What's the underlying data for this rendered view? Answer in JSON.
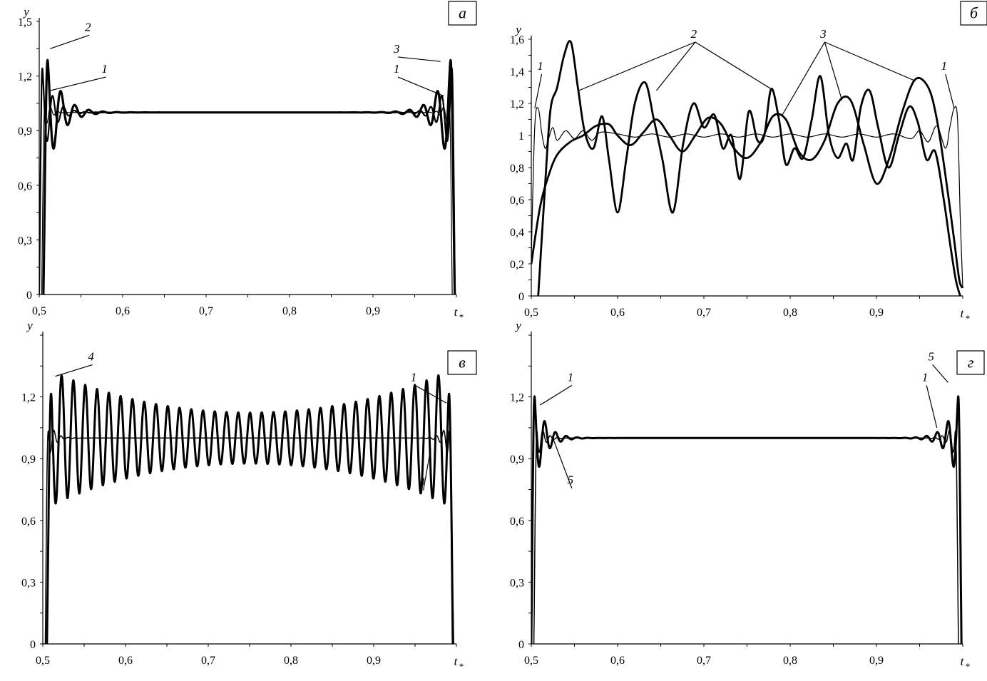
{
  "figure": {
    "panels": [
      "a",
      "b",
      "v",
      "g"
    ]
  },
  "chart_data": [
    {
      "id": "a",
      "type": "line",
      "panel_label": "а",
      "ylabel": "y",
      "xlabel": "t",
      "xlabel_sub": "*",
      "xlim": [
        0.5,
        1.0
      ],
      "ylim": [
        0,
        1.5
      ],
      "x_ticks": [
        "0,5",
        "0,6",
        "0,7",
        "0,8",
        "0,9"
      ],
      "y_ticks": [
        "0",
        "0,3",
        "0,6",
        "0,9",
        "1,2",
        "1,5"
      ],
      "x_tick_values": [
        0.5,
        0.6,
        0.7,
        0.8,
        0.9
      ],
      "y_tick_values": [
        0,
        0.3,
        0.6,
        0.9,
        1.2,
        1.5
      ],
      "grid": false,
      "series": [
        {
          "name": "1",
          "line_width": 1.2,
          "amplitude": 0.17,
          "decay": 0.006,
          "period": 0.0086,
          "x_start": 0.503,
          "x_end": 0.995,
          "ramp": 0.004
        },
        {
          "name": "2",
          "line_width": 3.2,
          "amplitude": 0.43,
          "decay": 0.016,
          "period": 0.0168,
          "x_start": 0.505,
          "x_end": 0.998,
          "ramp": 0.0055
        },
        {
          "name": "3",
          "line_width": 2.2,
          "amplitude": 0.35,
          "decay": 0.012,
          "period": 0.013,
          "x_start": 0.5,
          "x_end": 0.9983,
          "ramp": 0.004
        }
      ],
      "annotations": [
        {
          "text": "2",
          "x": 0.56,
          "y": 1.44,
          "target_x": 0.513,
          "target_y": 1.35
        },
        {
          "text": "1",
          "x": 0.58,
          "y": 1.21,
          "target_x": 0.513,
          "target_y": 1.12
        },
        {
          "text": "3",
          "x": 0.93,
          "y": 1.32,
          "target_x": 0.981,
          "target_y": 1.28
        },
        {
          "text": "1",
          "x": 0.93,
          "y": 1.21,
          "target_x": 0.985,
          "target_y": 1.09
        }
      ]
    },
    {
      "id": "b",
      "type": "line",
      "panel_label": "б",
      "ylabel": "y",
      "xlabel": "t",
      "xlabel_sub": "*",
      "xlim": [
        0.5,
        1.0
      ],
      "ylim": [
        0,
        1.6
      ],
      "x_ticks": [
        "0,5",
        "0,6",
        "0,7",
        "0,8",
        "0,9"
      ],
      "y_ticks": [
        "0",
        "0,2",
        "0,4",
        "0,6",
        "0,8",
        "1",
        "1,2",
        "1,4",
        "1,6"
      ],
      "x_tick_values": [
        0.5,
        0.6,
        0.7,
        0.8,
        0.9
      ],
      "y_tick_values": [
        0,
        0.2,
        0.4,
        0.6,
        0.8,
        1.0,
        1.2,
        1.4,
        1.6
      ],
      "grid": false,
      "series": [
        {
          "name": "1",
          "line_width": 1.2,
          "x": [
            0.5,
            0.504,
            0.508,
            0.512,
            0.516,
            0.52,
            0.525,
            0.53,
            0.54,
            0.55,
            0.56,
            0.57,
            0.58,
            0.6,
            0.62,
            0.64,
            0.66,
            0.68,
            0.7,
            0.72,
            0.74,
            0.76,
            0.78,
            0.8,
            0.82,
            0.84,
            0.86,
            0.88,
            0.9,
            0.92,
            0.94,
            0.95,
            0.96,
            0.97,
            0.98,
            0.985,
            0.99,
            0.994,
            0.997,
            1.0
          ],
          "y": [
            0.25,
            1.05,
            1.17,
            1.02,
            0.92,
            0.98,
            1.05,
            0.97,
            1.03,
            0.98,
            1.03,
            0.97,
            1.02,
            1.01,
            0.99,
            1.01,
            0.99,
            1.01,
            0.99,
            1.01,
            0.99,
            1.01,
            0.99,
            1.01,
            0.99,
            1.01,
            0.99,
            1.01,
            0.99,
            1.01,
            0.98,
            1.03,
            0.96,
            1.06,
            0.92,
            1.05,
            1.17,
            1.1,
            0.5,
            0.05
          ]
        },
        {
          "name": "2",
          "line_width": 2.8,
          "x": [
            0.508,
            0.515,
            0.522,
            0.53,
            0.538,
            0.546,
            0.554,
            0.562,
            0.572,
            0.582,
            0.59,
            0.6,
            0.61,
            0.62,
            0.632,
            0.642,
            0.652,
            0.664,
            0.676,
            0.688,
            0.7,
            0.712,
            0.722,
            0.732,
            0.742,
            0.752,
            0.762,
            0.77,
            0.778,
            0.787,
            0.795,
            0.805,
            0.815,
            0.825,
            0.835,
            0.845,
            0.855,
            0.865,
            0.873,
            0.882,
            0.892,
            0.902,
            0.914,
            0.926,
            0.938,
            0.948,
            0.958,
            0.968,
            0.978,
            0.986,
            0.992,
            0.997
          ],
          "y": [
            0.0,
            0.6,
            1.15,
            1.3,
            1.5,
            1.58,
            1.3,
            1.02,
            0.92,
            1.12,
            0.85,
            0.52,
            0.85,
            1.2,
            1.33,
            1.1,
            0.85,
            0.52,
            0.95,
            1.2,
            1.05,
            1.13,
            0.92,
            1.0,
            0.73,
            1.15,
            0.97,
            1.0,
            1.29,
            1.1,
            0.82,
            0.92,
            0.86,
            1.1,
            1.37,
            1.0,
            0.86,
            0.95,
            0.85,
            1.18,
            1.28,
            1.05,
            0.8,
            1.0,
            1.18,
            1.08,
            0.85,
            0.9,
            0.6,
            0.3,
            0.1,
            0.0
          ]
        },
        {
          "name": "3",
          "line_width": 2.8,
          "x": [
            0.5,
            0.51,
            0.52,
            0.53,
            0.545,
            0.56,
            0.575,
            0.59,
            0.6,
            0.615,
            0.63,
            0.645,
            0.66,
            0.675,
            0.69,
            0.705,
            0.72,
            0.735,
            0.75,
            0.765,
            0.78,
            0.795,
            0.81,
            0.825,
            0.84,
            0.855,
            0.87,
            0.885,
            0.9,
            0.915,
            0.93,
            0.945,
            0.96,
            0.97,
            0.98,
            0.99,
            0.996,
            1.0
          ],
          "y": [
            0.2,
            0.55,
            0.75,
            0.88,
            0.96,
            1.0,
            1.06,
            1.07,
            1.0,
            0.94,
            1.02,
            1.1,
            1.0,
            0.9,
            1.0,
            1.11,
            1.07,
            0.92,
            0.86,
            0.95,
            1.12,
            1.1,
            0.9,
            0.85,
            0.97,
            1.2,
            1.22,
            0.95,
            0.7,
            0.86,
            1.15,
            1.35,
            1.3,
            1.1,
            0.75,
            0.35,
            0.1,
            0.05
          ]
        }
      ],
      "annotations": [
        {
          "text": "1",
          "x": 0.512,
          "y": 1.4,
          "target_x": 0.504,
          "target_y": 1.17
        },
        {
          "text": "1",
          "x": 0.98,
          "y": 1.4,
          "target_x": 0.99,
          "target_y": 1.17
        },
        {
          "text": "2",
          "x": 0.69,
          "y": 1.6,
          "targets": [
            [
              0.555,
              1.28
            ],
            [
              0.645,
              1.28
            ],
            [
              0.778,
              1.29
            ]
          ]
        },
        {
          "text": "3",
          "x": 0.84,
          "y": 1.6,
          "targets": [
            [
              0.79,
              1.12
            ],
            [
              0.86,
              1.22
            ],
            [
              0.945,
              1.34
            ]
          ]
        }
      ]
    },
    {
      "id": "v",
      "type": "line",
      "panel_label": "в",
      "ylabel": "y",
      "xlabel": "t",
      "xlabel_sub": "*",
      "xlim": [
        0.5,
        1.0
      ],
      "ylim": [
        0,
        1.5
      ],
      "x_ticks": [
        "0,5",
        "0,6",
        "0,7",
        "0,8",
        "0,9"
      ],
      "y_ticks": [
        "0",
        "0,3",
        "0,6",
        "0,9",
        "1,2"
      ],
      "x_tick_values": [
        0.5,
        0.6,
        0.7,
        0.8,
        0.9
      ],
      "y_tick_values": [
        0,
        0.3,
        0.6,
        0.9,
        1.2
      ],
      "grid": false,
      "series": [
        {
          "name": "1",
          "line_width": 1.5,
          "amplitude": 0.17,
          "decay": 0.007,
          "period": 0.0085,
          "x_start": 0.503,
          "x_end": 0.995,
          "ramp": 0.004
        },
        {
          "name": "4",
          "line_width": 3.0,
          "amplitude": 0.33,
          "decay": 0.16,
          "period": 0.0143,
          "x_start": 0.505,
          "x_end": 0.996,
          "ramp": 0.006
        }
      ],
      "annotations": [
        {
          "text": "4",
          "x": 0.56,
          "y": 1.37,
          "target_x": 0.515,
          "target_y": 1.3
        },
        {
          "text": "1",
          "x": 0.95,
          "y": 1.27,
          "target_x": 0.988,
          "target_y": 1.17
        },
        {
          "text": "4",
          "x": 0.96,
          "y": 0.76,
          "target_x": 0.969,
          "target_y": 0.95
        }
      ]
    },
    {
      "id": "g",
      "type": "line",
      "panel_label": "г",
      "ylabel": "y",
      "xlabel": "t",
      "xlabel_sub": "*",
      "xlim": [
        0.5,
        1.0
      ],
      "ylim": [
        0,
        1.5
      ],
      "x_ticks": [
        "0,5",
        "0,6",
        "0,7",
        "0,8",
        "0,9"
      ],
      "y_ticks": [
        "0",
        "0,3",
        "0,6",
        "0,9",
        "1,2"
      ],
      "x_tick_values": [
        0.5,
        0.6,
        0.7,
        0.8,
        0.9
      ],
      "y_tick_values": [
        0,
        0.3,
        0.6,
        0.9,
        1.2
      ],
      "grid": false,
      "series": [
        {
          "name": "1",
          "line_width": 1.5,
          "amplitude": 0.17,
          "decay": 0.007,
          "period": 0.0085,
          "x_start": 0.503,
          "x_end": 0.995,
          "ramp": 0.004
        },
        {
          "name": "5",
          "line_width": 3.0,
          "amplitude": 0.3,
          "decay": 0.012,
          "period": 0.0125,
          "x_start": 0.5,
          "x_end": 0.9985,
          "ramp": 0.004
        }
      ],
      "annotations": [
        {
          "text": "1",
          "x": 0.547,
          "y": 1.27,
          "target_x": 0.51,
          "target_y": 1.16
        },
        {
          "text": "5",
          "x": 0.547,
          "y": 0.77,
          "target_x": 0.525,
          "target_y": 1.0
        },
        {
          "text": "5",
          "x": 0.965,
          "y": 1.37,
          "target_x": 0.983,
          "target_y": 1.27
        },
        {
          "text": "1",
          "x": 0.958,
          "y": 1.27,
          "target_x": 0.97,
          "target_y": 1.05
        }
      ]
    }
  ]
}
